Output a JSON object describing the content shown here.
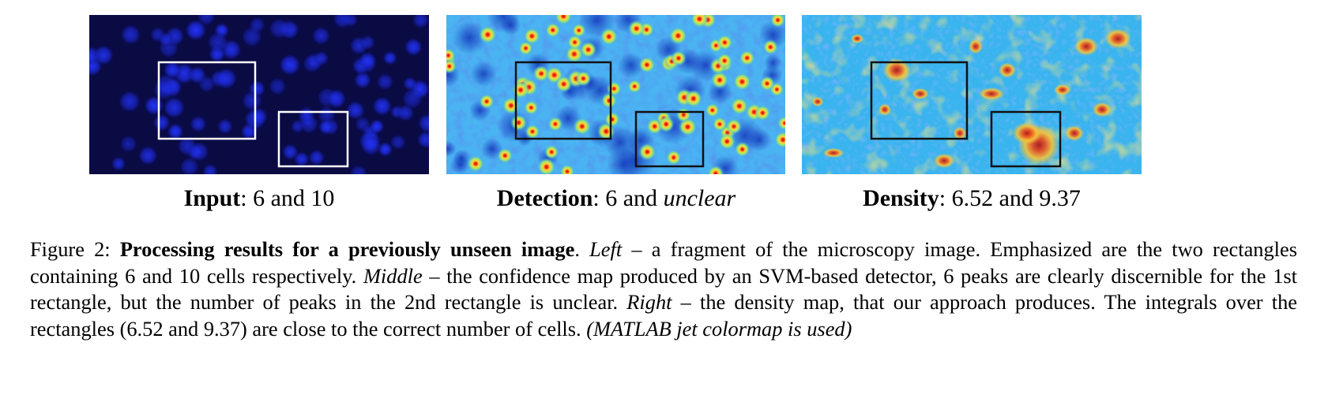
{
  "panels": [
    {
      "id": "input",
      "label_bold": "Input",
      "label_rest": ": 6 and 10",
      "label_italic": "",
      "colors": {
        "background": "#0a0a3c",
        "cell": "#1a2cf0",
        "box": "#ffffff"
      }
    },
    {
      "id": "detection",
      "label_bold": "Detection",
      "label_rest": ": 6 and ",
      "label_italic": "unclear",
      "colors": {
        "background": "#3aa6f0",
        "peak": "#d7261e",
        "halo": "#e8e84a",
        "box": "#111111"
      }
    },
    {
      "id": "density",
      "label_bold": "Density",
      "label_rest": ": 6.52 and 9.37",
      "label_italic": "",
      "colors": {
        "background": "#35b3ec",
        "hot": "#e8431c",
        "warm": "#f2c238",
        "box": "#111111"
      }
    }
  ],
  "figure_caption": {
    "prefix": "Figure 2: ",
    "title": "Processing results for a previously unseen image",
    "title_end": ". ",
    "left_label": "Left",
    "left_text": " – a fragment of the microscopy image. Emphasized are the two rectangles containing 6 and 10 cells respectively. ",
    "middle_label": "Middle",
    "middle_text": " – the confidence map produced by an SVM-based detector, 6 peaks are clearly discernible for the 1st rectangle, but the number of peaks in the 2nd rectangle is unclear. ",
    "right_label": "Right",
    "right_text": " – the density map, that our approach produces. The integrals over the rectangles (6.52 and 9.37) are close to the correct number of cells. ",
    "note": "(MATLAB jet colormap is used)"
  }
}
